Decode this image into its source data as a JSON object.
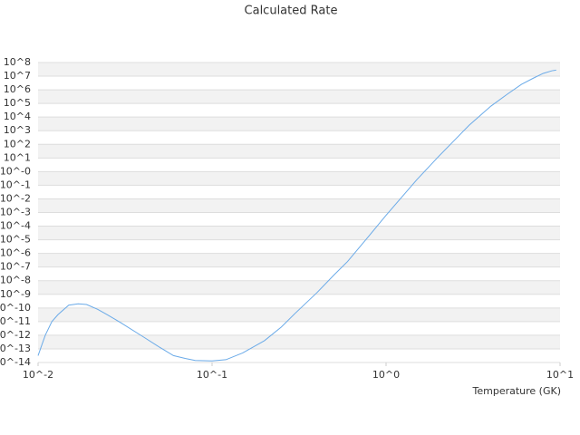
{
  "chart_data": {
    "type": "line",
    "title": "Calculated Rate",
    "x_label": "Temperature (GK)",
    "x_log": true,
    "y_log": true,
    "grid": true,
    "color": "#6aaae8",
    "xlim": [
      0.01,
      10
    ],
    "ylim": [
      1e-14,
      100000000.0
    ],
    "xticks": [
      {
        "value": 0.01,
        "label": "10^-2"
      },
      {
        "value": 0.1,
        "label": "10^-1"
      },
      {
        "value": 1,
        "label": "10^0"
      },
      {
        "value": 10,
        "label": "10^1"
      }
    ],
    "yticks": [
      {
        "value": 1e-14,
        "label": "10^-14"
      },
      {
        "value": 1e-13,
        "label": "10^-13"
      },
      {
        "value": 1e-12,
        "label": "10^-12"
      },
      {
        "value": 1e-11,
        "label": "10^-11"
      },
      {
        "value": 1e-10,
        "label": "10^-10"
      },
      {
        "value": 1e-09,
        "label": "10^-9"
      },
      {
        "value": 1e-08,
        "label": "10^-8"
      },
      {
        "value": 1e-07,
        "label": "10^-7"
      },
      {
        "value": 1e-06,
        "label": "10^-6"
      },
      {
        "value": 1e-05,
        "label": "10^-5"
      },
      {
        "value": 0.0001,
        "label": "10^-4"
      },
      {
        "value": 0.001,
        "label": "10^-3"
      },
      {
        "value": 0.01,
        "label": "10^-2"
      },
      {
        "value": 0.1,
        "label": "10^-1"
      },
      {
        "value": 1,
        "label": "10^-0"
      },
      {
        "value": 10,
        "label": "10^1"
      },
      {
        "value": 100,
        "label": "10^2"
      },
      {
        "value": 1000,
        "label": "10^3"
      },
      {
        "value": 10000,
        "label": "10^4"
      },
      {
        "value": 100000,
        "label": "10^5"
      },
      {
        "value": 1000000,
        "label": "10^6"
      },
      {
        "value": 10000000,
        "label": "10^7"
      },
      {
        "value": 100000000,
        "label": "10^8"
      }
    ],
    "x": [
      0.01,
      0.011,
      0.012,
      0.013,
      0.015,
      0.017,
      0.019,
      0.022,
      0.025,
      0.03,
      0.04,
      0.05,
      0.06,
      0.07,
      0.08,
      0.1,
      0.12,
      0.15,
      0.2,
      0.25,
      0.3,
      0.4,
      0.5,
      0.6,
      0.8,
      1,
      1.5,
      2,
      3,
      4,
      5,
      6,
      7,
      8,
      9,
      9.5
    ],
    "values": [
      3.2e-14,
      1e-12,
      1e-11,
      3.2e-11,
      1.6e-10,
      2e-10,
      1.8e-10,
      8e-11,
      3.2e-11,
      8e-12,
      8e-13,
      1.3e-13,
      3.2e-14,
      2e-14,
      1.4e-14,
      1.3e-14,
      1.6e-14,
      5e-14,
      4e-13,
      4e-12,
      4e-11,
      1.3e-09,
      2.5e-08,
      2.5e-07,
      2e-05,
      0.00063,
      0.25,
      12.6,
      2500,
      63000,
      500000,
      2500000,
      7000000,
      16000000,
      25000000,
      28000000
    ]
  }
}
